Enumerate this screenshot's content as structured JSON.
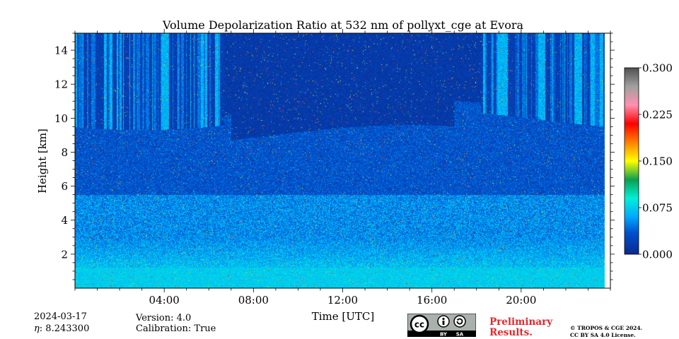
{
  "chart_data": {
    "type": "heatmap",
    "title": "Volume Depolarization Ratio at 532 nm of pollyxt_cge at Evora",
    "xlabel": "Time [UTC]",
    "ylabel": "Height [km]",
    "xlim_hours": [
      0,
      24
    ],
    "ylim_km": [
      0,
      15
    ],
    "x_ticks": [
      {
        "hour": 4,
        "label": "04:00"
      },
      {
        "hour": 8,
        "label": "08:00"
      },
      {
        "hour": 12,
        "label": "12:00"
      },
      {
        "hour": 16,
        "label": "16:00"
      },
      {
        "hour": 20,
        "label": "20:00"
      }
    ],
    "y_ticks": [
      {
        "km": 2,
        "label": "2"
      },
      {
        "km": 4,
        "label": "4"
      },
      {
        "km": 6,
        "label": "6"
      },
      {
        "km": 8,
        "label": "8"
      },
      {
        "km": 10,
        "label": "10"
      },
      {
        "km": 12,
        "label": "12"
      },
      {
        "km": 14,
        "label": "14"
      }
    ],
    "data_end_hour": 23.75,
    "colorbar": {
      "range": [
        0.0,
        0.3
      ],
      "ticks": [
        {
          "value": 0.0,
          "label": "0.000"
        },
        {
          "value": 0.075,
          "label": "0.075"
        },
        {
          "value": 0.15,
          "label": "0.150"
        },
        {
          "value": 0.225,
          "label": "0.225"
        },
        {
          "value": 0.3,
          "label": "0.300"
        }
      ],
      "stops": [
        {
          "value": 0.0,
          "color": "#0a2a8c"
        },
        {
          "value": 0.035,
          "color": "#0050d0"
        },
        {
          "value": 0.06,
          "color": "#00a8ff"
        },
        {
          "value": 0.09,
          "color": "#00f0d8"
        },
        {
          "value": 0.12,
          "color": "#0aa050"
        },
        {
          "value": 0.15,
          "color": "#ffff00"
        },
        {
          "value": 0.18,
          "color": "#ff8000"
        },
        {
          "value": 0.21,
          "color": "#ff0000"
        },
        {
          "value": 0.24,
          "color": "#ff90b0"
        },
        {
          "value": 0.27,
          "color": "#a0a0a0"
        },
        {
          "value": 0.3,
          "color": "#505050"
        }
      ]
    },
    "features": {
      "aerosol_layer_top_km": 10.5,
      "noisy_columns_hours": [
        [
          0,
          6.7
        ],
        [
          18.2,
          23.75
        ]
      ]
    }
  },
  "info": {
    "date": "2024-03-17",
    "eta": ": 8.243300",
    "eta_symbol": "η",
    "version": "Version: 4.0",
    "calibration": "Calibration: True",
    "preliminary_line1": "Preliminary",
    "preliminary_line2": "Results.",
    "copyright_line1": "© TROPOS & CGE 2024.",
    "copyright_line2": "CC BY SA 4.0 License.",
    "cc_label": "cc",
    "by_label": "BY",
    "sa_label": "SA"
  }
}
